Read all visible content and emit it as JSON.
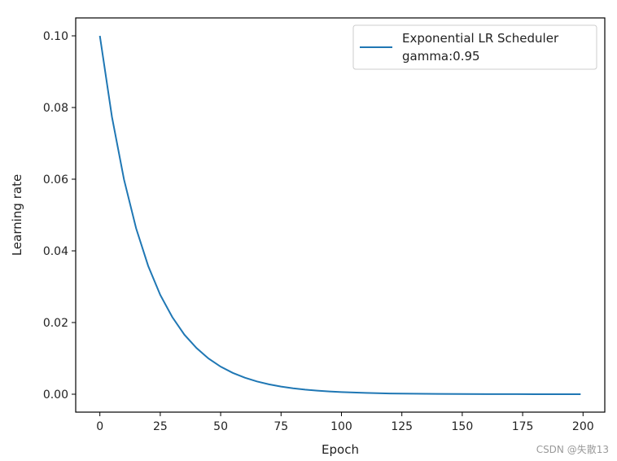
{
  "chart_data": {
    "type": "line",
    "xlabel": "Epoch",
    "ylabel": "Learning rate",
    "xlim": [
      -10,
      209
    ],
    "ylim": [
      -0.005,
      0.105
    ],
    "xticks": [
      0,
      25,
      50,
      75,
      100,
      125,
      150,
      175,
      200
    ],
    "yticks": [
      "0.00",
      "0.02",
      "0.04",
      "0.06",
      "0.08",
      "0.10"
    ],
    "grid": false,
    "legend_position": "top-right",
    "series": [
      {
        "name": "Exponential LR Scheduler\ngamma:0.95",
        "legend_line1": "Exponential LR Scheduler",
        "legend_line2": "gamma:0.95",
        "color": "#1f77b4",
        "x": [
          0,
          5,
          10,
          15,
          20,
          25,
          30,
          35,
          40,
          45,
          50,
          55,
          60,
          65,
          70,
          75,
          80,
          85,
          90,
          95,
          100,
          110,
          120,
          130,
          140,
          150,
          160,
          170,
          180,
          190,
          199
        ],
        "y": [
          0.1,
          0.0774,
          0.0599,
          0.0463,
          0.0358,
          0.0277,
          0.0215,
          0.0166,
          0.0129,
          0.00994,
          0.00769,
          0.00595,
          0.00461,
          0.00356,
          0.00276,
          0.00213,
          0.00165,
          0.00128,
          0.00099,
          0.00077,
          0.00059,
          0.00036,
          0.00021,
          0.00013,
          8e-05,
          5e-05,
          3e-05,
          2e-05,
          1e-05,
          6e-06,
          4e-06
        ]
      }
    ]
  },
  "watermark": "CSDN @失散13"
}
